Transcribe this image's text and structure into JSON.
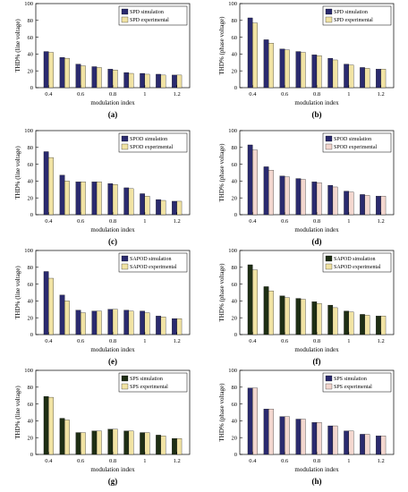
{
  "colors": {
    "simulation": "#2a2a6e",
    "experimental": "#f1e3a4",
    "sim_green": "#1e2e14",
    "exp_pink": "#f3d7cf"
  },
  "chart_data": [
    {
      "type": "bar",
      "label": "(a)",
      "xlabel": "modulation index",
      "ylabel": "THD% (line voltage)",
      "ylim": [
        0,
        100
      ],
      "yticks": [
        0,
        20,
        40,
        60,
        80,
        100
      ],
      "categories": [
        "0.4",
        "0.5",
        "0.6",
        "0.7",
        "0.8",
        "0.9",
        "1",
        "1.1",
        "1.2"
      ],
      "xticklabels": [
        "0.4",
        "0.6",
        "0.8",
        "1",
        "1.2"
      ],
      "legend_position": "top-right",
      "series": [
        {
          "name": "SPD simulation",
          "color": "#2a2a6e",
          "values": [
            43,
            36,
            28,
            25,
            22,
            18,
            17,
            16,
            15
          ]
        },
        {
          "name": "SPD experimental",
          "color": "#f1e3a4",
          "values": [
            42,
            35,
            26,
            24,
            21,
            17,
            16,
            15,
            15
          ]
        }
      ]
    },
    {
      "type": "bar",
      "label": "(b)",
      "xlabel": "modulation index",
      "ylabel": "THD% (phase voltage)",
      "ylim": [
        0,
        100
      ],
      "yticks": [
        0,
        20,
        40,
        60,
        80,
        100
      ],
      "categories": [
        "0.4",
        "0.5",
        "0.6",
        "0.7",
        "0.8",
        "0.9",
        "1",
        "1.1",
        "1.2"
      ],
      "xticklabels": [
        "0.4",
        "0.6",
        "0.8",
        "1",
        "1.2"
      ],
      "legend_position": "top-right",
      "series": [
        {
          "name": "SPD simulation",
          "color": "#2a2a6e",
          "values": [
            83,
            57,
            46,
            43,
            39,
            35,
            28,
            24,
            22
          ]
        },
        {
          "name": "SPD experimental",
          "color": "#f1e3a4",
          "values": [
            77,
            53,
            45,
            42,
            38,
            33,
            27,
            23,
            22
          ]
        }
      ]
    },
    {
      "type": "bar",
      "label": "(c)",
      "xlabel": "modulation index",
      "ylabel": "THD% (line voltage)",
      "ylim": [
        0,
        100
      ],
      "yticks": [
        0,
        20,
        40,
        60,
        80,
        100
      ],
      "categories": [
        "0.4",
        "0.5",
        "0.6",
        "0.7",
        "0.8",
        "0.9",
        "1",
        "1.1",
        "1.2"
      ],
      "xticklabels": [
        "0.4",
        "0.6",
        "0.8",
        "1",
        "1.2"
      ],
      "legend_position": "top-right",
      "series": [
        {
          "name": "SPOD simulation",
          "color": "#2a2a6e",
          "values": [
            75,
            47,
            39,
            39,
            37,
            32,
            25,
            18,
            16
          ]
        },
        {
          "name": "SPOD experimental",
          "color": "#f1e3a4",
          "values": [
            68,
            40,
            39,
            39,
            36,
            31,
            22,
            17,
            16
          ]
        }
      ]
    },
    {
      "type": "bar",
      "label": "(d)",
      "xlabel": "modulation index",
      "ylabel": "THD% (phase voltage)",
      "ylim": [
        0,
        100
      ],
      "yticks": [
        0,
        20,
        40,
        60,
        80,
        100
      ],
      "categories": [
        "0.4",
        "0.5",
        "0.6",
        "0.7",
        "0.8",
        "0.9",
        "1",
        "1.1",
        "1.2"
      ],
      "xticklabels": [
        "0.4",
        "0.6",
        "0.8",
        "1",
        "1.2"
      ],
      "legend_position": "top-right",
      "series": [
        {
          "name": "SPOD simulation",
          "color": "#2a2a6e",
          "values": [
            83,
            57,
            46,
            43,
            39,
            35,
            28,
            24,
            22
          ]
        },
        {
          "name": "SPOD experimental",
          "color": "#f3d7cf",
          "values": [
            77,
            53,
            45,
            42,
            38,
            33,
            27,
            23,
            22
          ]
        }
      ]
    },
    {
      "type": "bar",
      "label": "(e)",
      "xlabel": "modulation index",
      "ylabel": "THD% (line voltage)",
      "ylim": [
        0,
        100
      ],
      "yticks": [
        0,
        20,
        40,
        60,
        80,
        100
      ],
      "categories": [
        "0.4",
        "0.5",
        "0.6",
        "0.7",
        "0.8",
        "0.9",
        "1",
        "1.1",
        "1.2"
      ],
      "xticklabels": [
        "0.4",
        "0.6",
        "0.8",
        "1",
        "1.2"
      ],
      "legend_position": "top-right",
      "series": [
        {
          "name": "SAPOD simulation",
          "color": "#2a2a6e",
          "values": [
            75,
            47,
            29,
            28,
            30,
            29,
            28,
            22,
            19
          ]
        },
        {
          "name": "SAPOD experimental",
          "color": "#f1e3a4",
          "values": [
            67,
            40,
            26,
            28,
            30,
            28,
            26,
            21,
            19
          ]
        }
      ]
    },
    {
      "type": "bar",
      "label": "(f)",
      "xlabel": "modulation index",
      "ylabel": "THD% (phase voltage)",
      "ylim": [
        0,
        100
      ],
      "yticks": [
        0,
        20,
        40,
        60,
        80,
        100
      ],
      "categories": [
        "0.4",
        "0.5",
        "0.6",
        "0.7",
        "0.8",
        "0.9",
        "1",
        "1.1",
        "1.2"
      ],
      "xticklabels": [
        "0.4",
        "0.6",
        "0.8",
        "1",
        "1.2"
      ],
      "legend_position": "top-right",
      "series": [
        {
          "name": "SAPOD simulation",
          "color": "#1e2e14",
          "values": [
            83,
            57,
            46,
            43,
            39,
            35,
            28,
            24,
            22
          ]
        },
        {
          "name": "SAPOD experimental",
          "color": "#f1e3a4",
          "values": [
            77,
            52,
            44,
            42,
            37,
            32,
            27,
            23,
            22
          ]
        }
      ]
    },
    {
      "type": "bar",
      "label": "(g)",
      "xlabel": "modulation index",
      "ylabel": "THD% (line voltage)",
      "ylim": [
        0,
        100
      ],
      "yticks": [
        0,
        20,
        40,
        60,
        80,
        100
      ],
      "categories": [
        "0.4",
        "0.5",
        "0.6",
        "0.7",
        "0.8",
        "0.9",
        "1",
        "1.1",
        "1.2"
      ],
      "xticklabels": [
        "0.4",
        "0.6",
        "0.8",
        "1",
        "1.2"
      ],
      "legend_position": "top-right",
      "series": [
        {
          "name": "SPS simulation",
          "color": "#1e2e14",
          "values": [
            69,
            43,
            26,
            28,
            30,
            28,
            26,
            23,
            19
          ]
        },
        {
          "name": "SPS experimental",
          "color": "#f1e3a4",
          "values": [
            68,
            41,
            26,
            28,
            30,
            28,
            26,
            22,
            19
          ]
        }
      ]
    },
    {
      "type": "bar",
      "label": "(h)",
      "xlabel": "modulation index",
      "ylabel": "THD% (phase voltage)",
      "ylim": [
        0,
        100
      ],
      "yticks": [
        0,
        20,
        40,
        60,
        80,
        100
      ],
      "categories": [
        "0.4",
        "0.5",
        "0.6",
        "0.7",
        "0.8",
        "0.9",
        "1",
        "1.1",
        "1.2"
      ],
      "xticklabels": [
        "0.4",
        "0.6",
        "0.8",
        "1",
        "1.2"
      ],
      "legend_position": "top-right",
      "series": [
        {
          "name": "SPS simulation",
          "color": "#2a2a6e",
          "values": [
            79,
            54,
            45,
            42,
            38,
            34,
            28,
            24,
            22
          ]
        },
        {
          "name": "SPS experimental",
          "color": "#f3d7cf",
          "values": [
            79,
            54,
            45,
            42,
            38,
            34,
            28,
            24,
            22
          ]
        }
      ]
    }
  ]
}
